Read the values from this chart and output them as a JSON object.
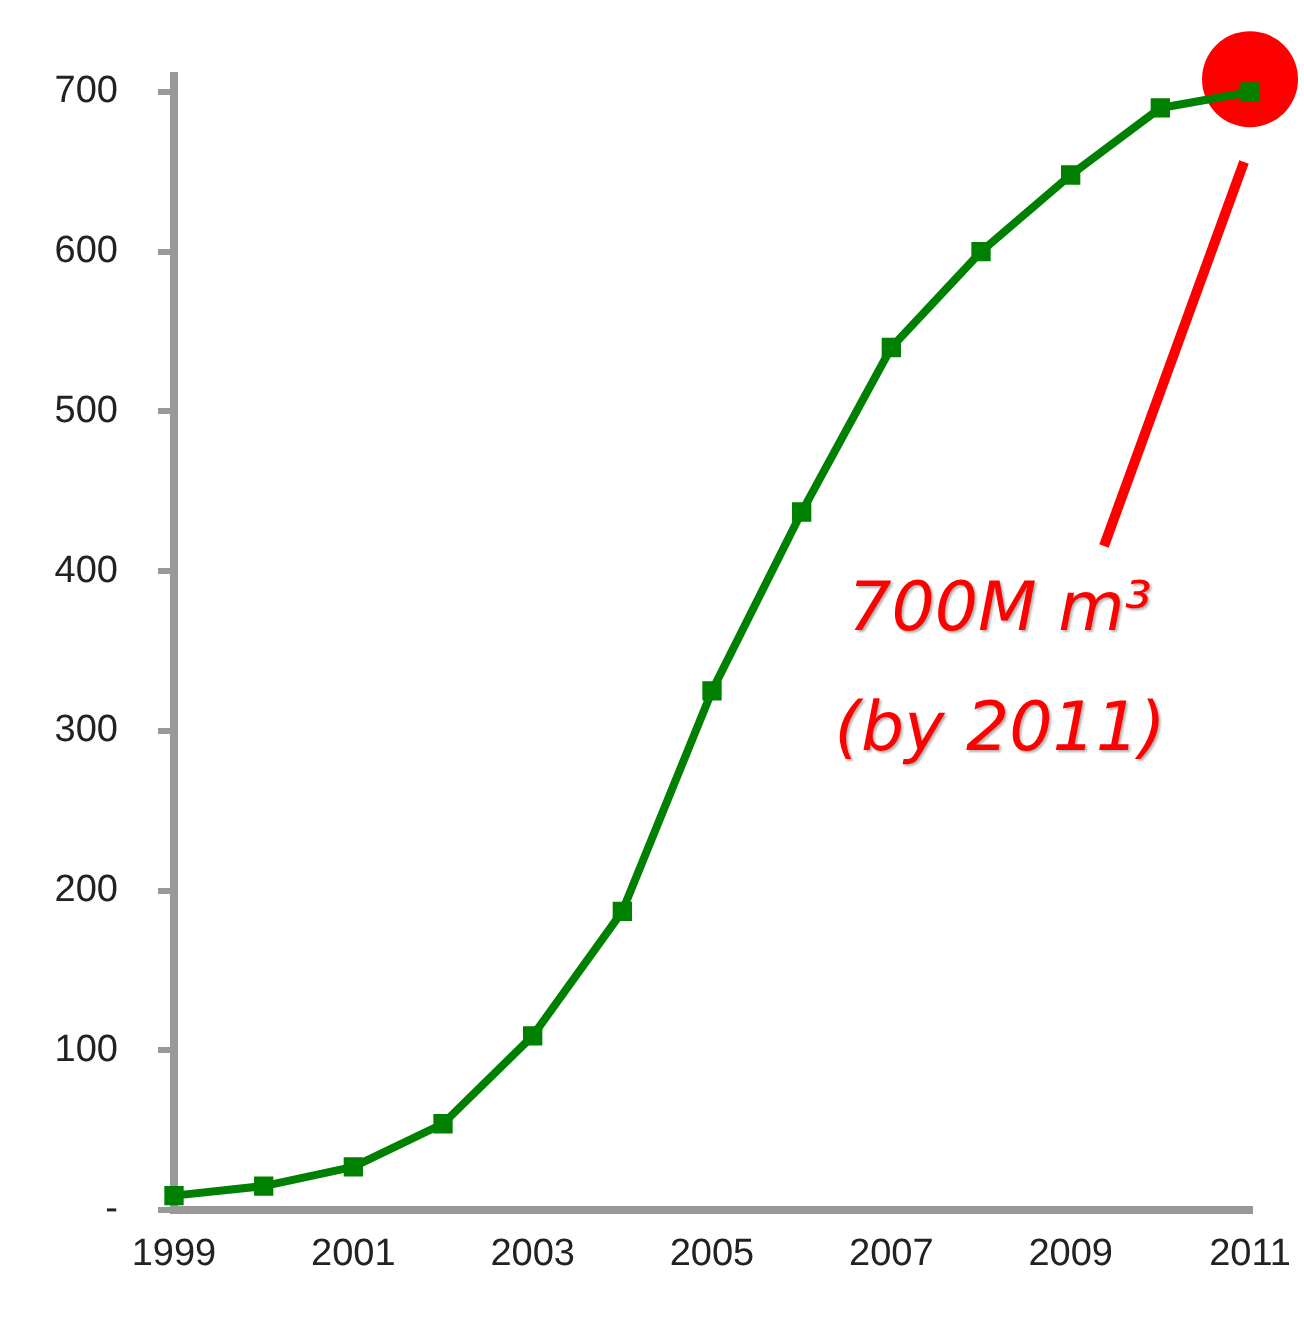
{
  "chart_data": {
    "type": "line",
    "x": [
      1999,
      2000,
      2001,
      2002,
      2003,
      2004,
      2005,
      2006,
      2007,
      2008,
      2009,
      2010,
      2011
    ],
    "series": [
      {
        "color": "#008000",
        "marker": "square",
        "values": [
          9,
          15,
          27,
          54,
          109,
          187,
          325,
          437,
          540,
          600,
          648,
          690,
          700
        ]
      },
      {
        "type": "scatter",
        "marker": "circle",
        "color": "#ff0000",
        "x": [
          2011
        ],
        "values": [
          708
        ]
      }
    ],
    "xlim": [
      1999,
      2011
    ],
    "xticks": [
      1999,
      2001,
      2003,
      2005,
      2007,
      2009,
      2011
    ],
    "ylim": [
      0,
      710
    ],
    "yticks": [
      {
        "value": 0,
        "label": "-"
      },
      100,
      200,
      300,
      400,
      500,
      600,
      700
    ],
    "grid": false,
    "legend": false,
    "line_style": "solid",
    "annotations": [
      "700M m³\n(by 2011)"
    ]
  }
}
